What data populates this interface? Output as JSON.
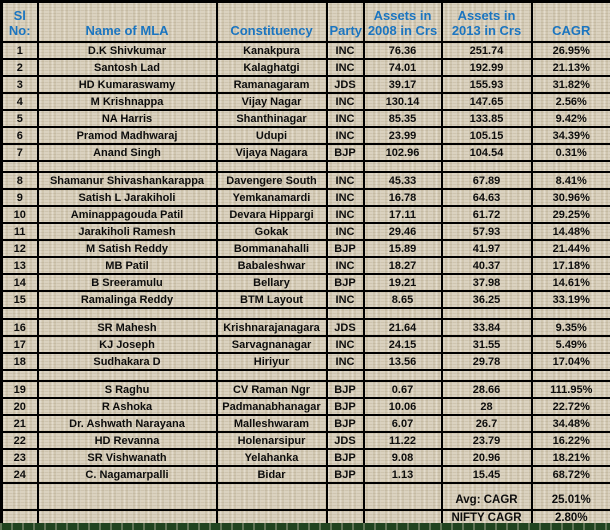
{
  "table": {
    "headers": {
      "sl_no": "Sl No:",
      "name": "Name of MLA",
      "constituency": "Constituency",
      "party": "Party",
      "assets_2008": "Assets in 2008 in Crs",
      "assets_2013": "Assets in 2013 in Crs",
      "cagr": "CAGR"
    },
    "rows": [
      {
        "sl": "1",
        "name": "D.K Shivkumar",
        "constituency": "Kanakpura",
        "party": "INC",
        "assets_2008": "76.36",
        "assets_2013": "251.74",
        "cagr": "26.95%"
      },
      {
        "sl": "2",
        "name": "Santosh Lad",
        "constituency": "Kalaghatgi",
        "party": "INC",
        "assets_2008": "74.01",
        "assets_2013": "192.99",
        "cagr": "21.13%"
      },
      {
        "sl": "3",
        "name": "HD Kumaraswamy",
        "constituency": "Ramanagaram",
        "party": "JDS",
        "assets_2008": "39.17",
        "assets_2013": "155.93",
        "cagr": "31.82%"
      },
      {
        "sl": "4",
        "name": "M Krishnappa",
        "constituency": "Vijay Nagar",
        "party": "INC",
        "assets_2008": "130.14",
        "assets_2013": "147.65",
        "cagr": "2.56%"
      },
      {
        "sl": "5",
        "name": "NA Harris",
        "constituency": "Shanthinagar",
        "party": "INC",
        "assets_2008": "85.35",
        "assets_2013": "133.85",
        "cagr": "9.42%"
      },
      {
        "sl": "6",
        "name": "Pramod Madhwaraj",
        "constituency": "Udupi",
        "party": "INC",
        "assets_2008": "23.99",
        "assets_2013": "105.15",
        "cagr": "34.39%"
      },
      {
        "sl": "7",
        "name": "Anand Singh",
        "constituency": "Vijaya Nagara",
        "party": "BJP",
        "assets_2008": "102.96",
        "assets_2013": "104.54",
        "cagr": "0.31%"
      },
      {
        "sl": "8",
        "name": "Shamanur Shivashankarappa",
        "constituency": "Davengere South",
        "party": "INC",
        "assets_2008": "45.33",
        "assets_2013": "67.89",
        "cagr": "8.41%"
      },
      {
        "sl": "9",
        "name": "Satish L Jarakiholi",
        "constituency": "Yemkanamardi",
        "party": "INC",
        "assets_2008": "16.78",
        "assets_2013": "64.63",
        "cagr": "30.96%"
      },
      {
        "sl": "10",
        "name": "Aminappagouda  Patil",
        "constituency": "Devara Hippargi",
        "party": "INC",
        "assets_2008": "17.11",
        "assets_2013": "61.72",
        "cagr": "29.25%"
      },
      {
        "sl": "11",
        "name": "Jarakiholi  Ramesh",
        "constituency": "Gokak",
        "party": "INC",
        "assets_2008": "29.46",
        "assets_2013": "57.93",
        "cagr": "14.48%"
      },
      {
        "sl": "12",
        "name": "M Satish Reddy",
        "constituency": "Bommanahalli",
        "party": "BJP",
        "assets_2008": "15.89",
        "assets_2013": "41.97",
        "cagr": "21.44%"
      },
      {
        "sl": "13",
        "name": "MB Patil",
        "constituency": "Babaleshwar",
        "party": "INC",
        "assets_2008": "18.27",
        "assets_2013": "40.37",
        "cagr": "17.18%"
      },
      {
        "sl": "14",
        "name": "B Sreeramulu",
        "constituency": "Bellary",
        "party": "BJP",
        "assets_2008": "19.21",
        "assets_2013": "37.98",
        "cagr": "14.61%"
      },
      {
        "sl": "15",
        "name": "Ramalinga  Reddy",
        "constituency": "BTM Layout",
        "party": "INC",
        "assets_2008": "8.65",
        "assets_2013": "36.25",
        "cagr": "33.19%"
      },
      {
        "sl": "16",
        "name": "SR Mahesh",
        "constituency": "Krishnarajanagara",
        "party": "JDS",
        "assets_2008": "21.64",
        "assets_2013": "33.84",
        "cagr": "9.35%"
      },
      {
        "sl": "17",
        "name": "KJ Joseph",
        "constituency": "Sarvagnanagar",
        "party": "INC",
        "assets_2008": "24.15",
        "assets_2013": "31.55",
        "cagr": "5.49%"
      },
      {
        "sl": "18",
        "name": "Sudhakara D",
        "constituency": "Hiriyur",
        "party": "INC",
        "assets_2008": "13.56",
        "assets_2013": "29.78",
        "cagr": "17.04%"
      },
      {
        "sl": "19",
        "name": "S Raghu",
        "constituency": "CV Raman Ngr",
        "party": "BJP",
        "assets_2008": "0.67",
        "assets_2013": "28.66",
        "cagr": "111.95%"
      },
      {
        "sl": "20",
        "name": "R Ashoka",
        "constituency": "Padmanabhanagar",
        "party": "BJP",
        "assets_2008": "10.06",
        "assets_2013": "28",
        "cagr": "22.72%"
      },
      {
        "sl": "21",
        "name": "Dr. Ashwath Narayana",
        "constituency": "Malleshwaram",
        "party": "BJP",
        "assets_2008": "6.07",
        "assets_2013": "26.7",
        "cagr": "34.48%"
      },
      {
        "sl": "22",
        "name": "HD Revanna",
        "constituency": "Holenarsipur",
        "party": "JDS",
        "assets_2008": "11.22",
        "assets_2013": "23.79",
        "cagr": "16.22%"
      },
      {
        "sl": "23",
        "name": "SR Vishwanath",
        "constituency": "Yelahanka",
        "party": "BJP",
        "assets_2008": "9.08",
        "assets_2013": "20.96",
        "cagr": "18.21%"
      },
      {
        "sl": "24",
        "name": "C. Nagamarpalli",
        "constituency": "Bidar",
        "party": "BJP",
        "assets_2008": "1.13",
        "assets_2013": "15.45",
        "cagr": "68.72%"
      }
    ],
    "separator_after": [
      7,
      15,
      18
    ],
    "footer": {
      "avg_label": "Avg: CAGR",
      "avg_value": "25.01%",
      "nifty_label": "NIFTY CAGR",
      "nifty_value": "2.80%"
    }
  },
  "colors": {
    "header_text": "#1b75c0",
    "body_text": "#0d0d0d",
    "border": "#000000",
    "background": "#d8cfba",
    "bottom_strip": "#20431f"
  }
}
